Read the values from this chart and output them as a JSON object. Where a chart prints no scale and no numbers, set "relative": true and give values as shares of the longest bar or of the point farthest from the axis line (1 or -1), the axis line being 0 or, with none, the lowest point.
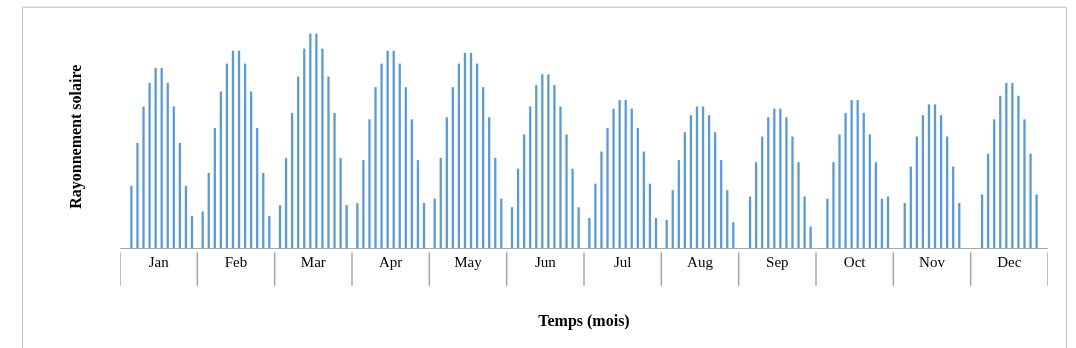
{
  "chart_data": {
    "type": "bar",
    "relative": true,
    "xlabel": "Temps (mois)",
    "ylabel": "Rayonnement solaire",
    "categories": [
      "Jan",
      "Feb",
      "Mar",
      "Apr",
      "May",
      "Jun",
      "Jul",
      "Aug",
      "Sep",
      "Oct",
      "Nov",
      "Dec"
    ],
    "series": [
      {
        "color": "#5b9bd5",
        "values": [
          null,
          0.17,
          0.2,
          0.21,
          0.23,
          0.19,
          0.14,
          0.13,
          null,
          null,
          null,
          null
        ]
      },
      {
        "color": "#5b9bd5",
        "values": [
          0.29,
          0.35,
          0.42,
          0.41,
          0.42,
          0.37,
          0.3,
          0.27,
          0.24,
          0.23,
          0.21,
          0.25
        ]
      },
      {
        "color": "#5b9bd5",
        "values": [
          0.49,
          0.56,
          0.63,
          0.6,
          0.61,
          0.53,
          0.45,
          0.41,
          0.4,
          0.4,
          0.38,
          0.44
        ]
      },
      {
        "color": "#5b9bd5",
        "values": [
          0.66,
          0.73,
          0.8,
          0.75,
          0.75,
          0.66,
          0.56,
          0.54,
          0.52,
          0.53,
          0.52,
          0.6
        ]
      },
      {
        "color": "#5b9bd5",
        "values": [
          0.77,
          0.86,
          0.93,
          0.86,
          0.86,
          0.76,
          0.65,
          0.62,
          0.61,
          0.63,
          0.62,
          0.71
        ]
      },
      {
        "color": "#5b9bd5",
        "values": [
          0.84,
          0.92,
          1.0,
          0.92,
          0.91,
          0.81,
          0.69,
          0.66,
          0.65,
          0.69,
          0.67,
          0.77
        ]
      },
      {
        "color": "#5b9bd5",
        "values": [
          0.84,
          0.92,
          1.0,
          0.92,
          0.91,
          0.81,
          0.69,
          0.66,
          0.65,
          0.69,
          0.67,
          0.77
        ]
      },
      {
        "color": "#5b9bd5",
        "values": [
          0.77,
          0.86,
          0.93,
          0.86,
          0.86,
          0.76,
          0.65,
          0.62,
          0.61,
          0.63,
          0.62,
          0.71
        ]
      },
      {
        "color": "#5b9bd5",
        "values": [
          0.66,
          0.73,
          0.8,
          0.75,
          0.75,
          0.66,
          0.56,
          0.54,
          0.52,
          0.53,
          0.52,
          0.6
        ]
      },
      {
        "color": "#5b9bd5",
        "values": [
          0.49,
          0.56,
          0.63,
          0.6,
          0.61,
          0.53,
          0.45,
          0.41,
          0.4,
          0.4,
          0.38,
          0.44
        ]
      },
      {
        "color": "#5b9bd5",
        "values": [
          0.29,
          0.35,
          0.42,
          0.41,
          0.42,
          0.37,
          0.3,
          0.27,
          0.24,
          0.23,
          0.21,
          0.25
        ]
      },
      {
        "color": "#5b9bd5",
        "values": [
          0.15,
          0.15,
          0.2,
          0.21,
          0.23,
          0.19,
          0.14,
          0.12,
          0.1,
          0.24,
          null,
          null
        ]
      }
    ]
  }
}
